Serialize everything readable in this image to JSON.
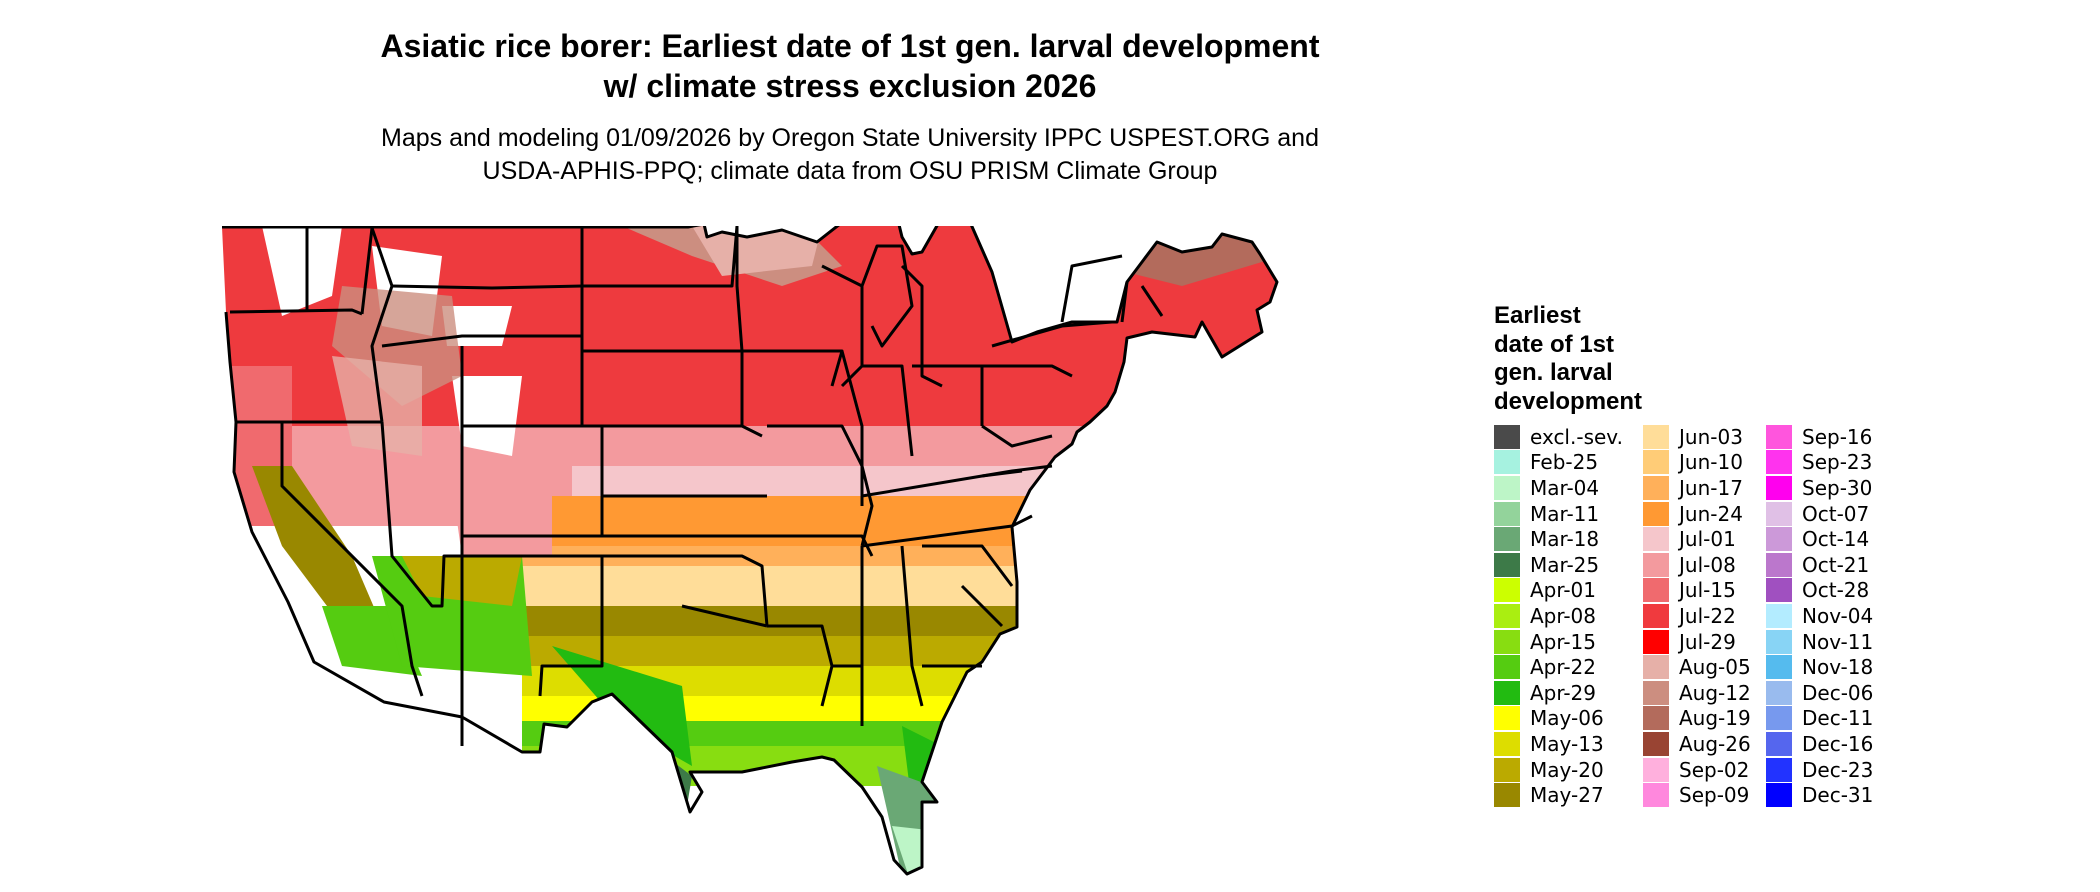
{
  "title_line1": "Asiatic rice borer: Earliest date of 1st gen. larval development",
  "title_line2": "w/ climate stress exclusion 2026",
  "subtitle_line1": "Maps and modeling 01/09/2026 by Oregon State University IPPC USPEST.ORG and",
  "subtitle_line2": "USDA-APHIS-PPQ; climate data from OSU PRISM Climate Group",
  "legend": {
    "title_lines": [
      "Earliest",
      "date of 1st",
      "gen. larval",
      "development"
    ],
    "columns": [
      [
        {
          "label": "excl.-sev.",
          "color": "#4a4a4a"
        },
        {
          "label": "Feb-25",
          "color": "#a6f2e0"
        },
        {
          "label": "Mar-04",
          "color": "#bdf5c7"
        },
        {
          "label": "Mar-11",
          "color": "#93d39b"
        },
        {
          "label": "Mar-18",
          "color": "#6aa875"
        },
        {
          "label": "Mar-25",
          "color": "#3d7a48"
        },
        {
          "label": "Apr-01",
          "color": "#ccff00"
        },
        {
          "label": "Apr-08",
          "color": "#aaee11"
        },
        {
          "label": "Apr-15",
          "color": "#88dd11"
        },
        {
          "label": "Apr-22",
          "color": "#55cc11"
        },
        {
          "label": "Apr-29",
          "color": "#22bb11"
        },
        {
          "label": "May-06",
          "color": "#ffff00"
        },
        {
          "label": "May-13",
          "color": "#dddd00"
        },
        {
          "label": "May-20",
          "color": "#bbaa00"
        },
        {
          "label": "May-27",
          "color": "#998800"
        }
      ],
      [
        {
          "label": "Jun-03",
          "color": "#ffdd99"
        },
        {
          "label": "Jun-10",
          "color": "#ffcc77"
        },
        {
          "label": "Jun-17",
          "color": "#ffb05a"
        },
        {
          "label": "Jun-24",
          "color": "#ff9933"
        },
        {
          "label": "Jul-01",
          "color": "#f5c6cb"
        },
        {
          "label": "Jul-08",
          "color": "#f39a9e"
        },
        {
          "label": "Jul-15",
          "color": "#f06a6e"
        },
        {
          "label": "Jul-22",
          "color": "#f03a3e"
        },
        {
          "label": "Jul-29",
          "color": "#ff0000"
        },
        {
          "label": "Aug-05",
          "color": "#e6b0a8"
        },
        {
          "label": "Aug-12",
          "color": "#cc8e80"
        },
        {
          "label": "Aug-19",
          "color": "#b36b5c"
        },
        {
          "label": "Aug-26",
          "color": "#994433"
        },
        {
          "label": "Sep-02",
          "color": "#ffb0dd"
        },
        {
          "label": "Sep-09",
          "color": "#ff88dd"
        }
      ],
      [
        {
          "label": "Sep-16",
          "color": "#ff55dd"
        },
        {
          "label": "Sep-23",
          "color": "#ff33ee"
        },
        {
          "label": "Sep-30",
          "color": "#ff00ee"
        },
        {
          "label": "Oct-07",
          "color": "#e0c0e6"
        },
        {
          "label": "Oct-14",
          "color": "#cc99d9"
        },
        {
          "label": "Oct-21",
          "color": "#bb77cc"
        },
        {
          "label": "Oct-28",
          "color": "#a050c0"
        },
        {
          "label": "Nov-04",
          "color": "#b3ecff"
        },
        {
          "label": "Nov-11",
          "color": "#88d4f5"
        },
        {
          "label": "Nov-18",
          "color": "#55bbee"
        },
        {
          "label": "Dec-06",
          "color": "#99bbee"
        },
        {
          "label": "Dec-11",
          "color": "#7799ee"
        },
        {
          "label": "Dec-16",
          "color": "#5566ee"
        },
        {
          "label": "Dec-23",
          "color": "#2233ff"
        },
        {
          "label": "Dec-31",
          "color": "#0000ff"
        }
      ]
    ]
  }
}
